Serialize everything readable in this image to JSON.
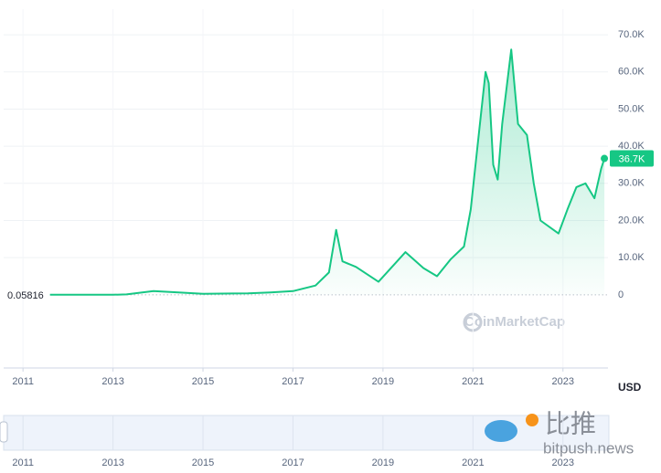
{
  "chart_data": {
    "type": "area",
    "x": [
      2011.6,
      2012.5,
      2013.0,
      2013.3,
      2013.9,
      2014.5,
      2015.0,
      2016.0,
      2016.5,
      2017.0,
      2017.5,
      2017.8,
      2017.96,
      2018.1,
      2018.4,
      2018.9,
      2019.5,
      2019.9,
      2020.2,
      2020.5,
      2020.8,
      2020.95,
      2021.1,
      2021.28,
      2021.35,
      2021.45,
      2021.55,
      2021.65,
      2021.85,
      2022.0,
      2022.2,
      2022.35,
      2022.5,
      2022.9,
      2023.1,
      2023.3,
      2023.5,
      2023.7,
      2023.85,
      2023.92
    ],
    "values": [
      10,
      7,
      13,
      100,
      1000,
      600,
      250,
      400,
      650,
      1000,
      2500,
      6000,
      17500,
      9000,
      7500,
      3500,
      11500,
      7200,
      5000,
      9500,
      13000,
      23000,
      40000,
      60000,
      57000,
      35000,
      31000,
      46000,
      66000,
      46000,
      43000,
      30000,
      20000,
      16500,
      23000,
      29000,
      30000,
      26000,
      34000,
      36700
    ],
    "color": "#16c784",
    "xlim": [
      2010.57,
      2024.0
    ],
    "xticks": [
      2011,
      2013,
      2015,
      2017,
      2019,
      2021,
      2023
    ],
    "ylim": [
      -19700,
      76900
    ],
    "yticks": [
      0,
      {
        "value": 10000,
        "label": "10.0K"
      },
      {
        "value": 20000,
        "label": "20.0K"
      },
      {
        "value": 30000,
        "label": "30.0K"
      },
      {
        "value": 40000,
        "label": "40.0K"
      },
      {
        "value": 50000,
        "label": "50.0K"
      },
      {
        "value": 60000,
        "label": "60.0K"
      },
      {
        "value": 70000,
        "label": "70.0K"
      }
    ],
    "grid": true,
    "start_price": 0.05816,
    "current_price": {
      "value": 36700,
      "label": "36.7K"
    },
    "currency": "USD",
    "watermark": "CoinMarketCap",
    "overlay_title": "比推",
    "overlay_site": "bitpush.news"
  }
}
